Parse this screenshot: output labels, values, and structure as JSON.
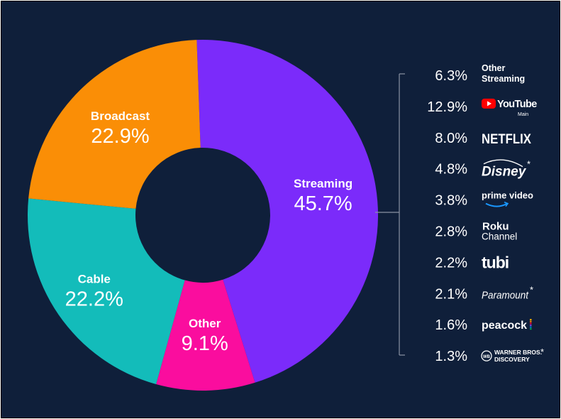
{
  "chart_data": {
    "type": "pie",
    "variant": "donut",
    "title": "",
    "colors": {
      "background": "#0f1f3a",
      "bracket": "#8a92a3",
      "text": "#ffffff"
    },
    "slices": [
      {
        "label": "Streaming",
        "value": 45.7,
        "display": "45.7%",
        "color": "#7b2bfa"
      },
      {
        "label": "Other",
        "value": 9.1,
        "display": "9.1%",
        "color": "#fa0d9e"
      },
      {
        "label": "Cable",
        "value": 22.2,
        "display": "22.2%",
        "color": "#13bcba"
      },
      {
        "label": "Broadcast",
        "value": 22.9,
        "display": "22.9%",
        "color": "#fa8e06"
      }
    ],
    "streaming_breakdown": [
      {
        "value": 6.3,
        "display": "6.3%",
        "brand": "Other Streaming",
        "lines": [
          "Other",
          "Streaming"
        ],
        "icon": "text-icon"
      },
      {
        "value": 12.9,
        "display": "12.9%",
        "brand": "YouTube",
        "sub": "Main",
        "icon": "youtube-logo"
      },
      {
        "value": 8.0,
        "display": "8.0%",
        "brand": "NETFLIX",
        "icon": "netflix-logo"
      },
      {
        "value": 4.8,
        "display": "4.8%",
        "brand": "Disney",
        "asterisk": "*",
        "icon": "disney-logo"
      },
      {
        "value": 3.8,
        "display": "3.8%",
        "brand": "prime video",
        "icon": "prime-video-logo"
      },
      {
        "value": 2.8,
        "display": "2.8%",
        "brand": "Roku Channel",
        "lines": [
          "Roku",
          "Channel"
        ],
        "icon": "roku-logo"
      },
      {
        "value": 2.2,
        "display": "2.2%",
        "brand": "tubi",
        "icon": "tubi-logo"
      },
      {
        "value": 2.1,
        "display": "2.1%",
        "brand": "Paramount",
        "asterisk": "*",
        "icon": "paramount-logo"
      },
      {
        "value": 1.6,
        "display": "1.6%",
        "brand": "peacock",
        "icon": "peacock-logo"
      },
      {
        "value": 1.3,
        "display": "1.3%",
        "brand": "Warner Bros. Discovery",
        "lines": [
          "WARNER BROS.",
          "DISCOVERY"
        ],
        "asterisk": "*",
        "icon": "wbd-logo"
      }
    ]
  }
}
